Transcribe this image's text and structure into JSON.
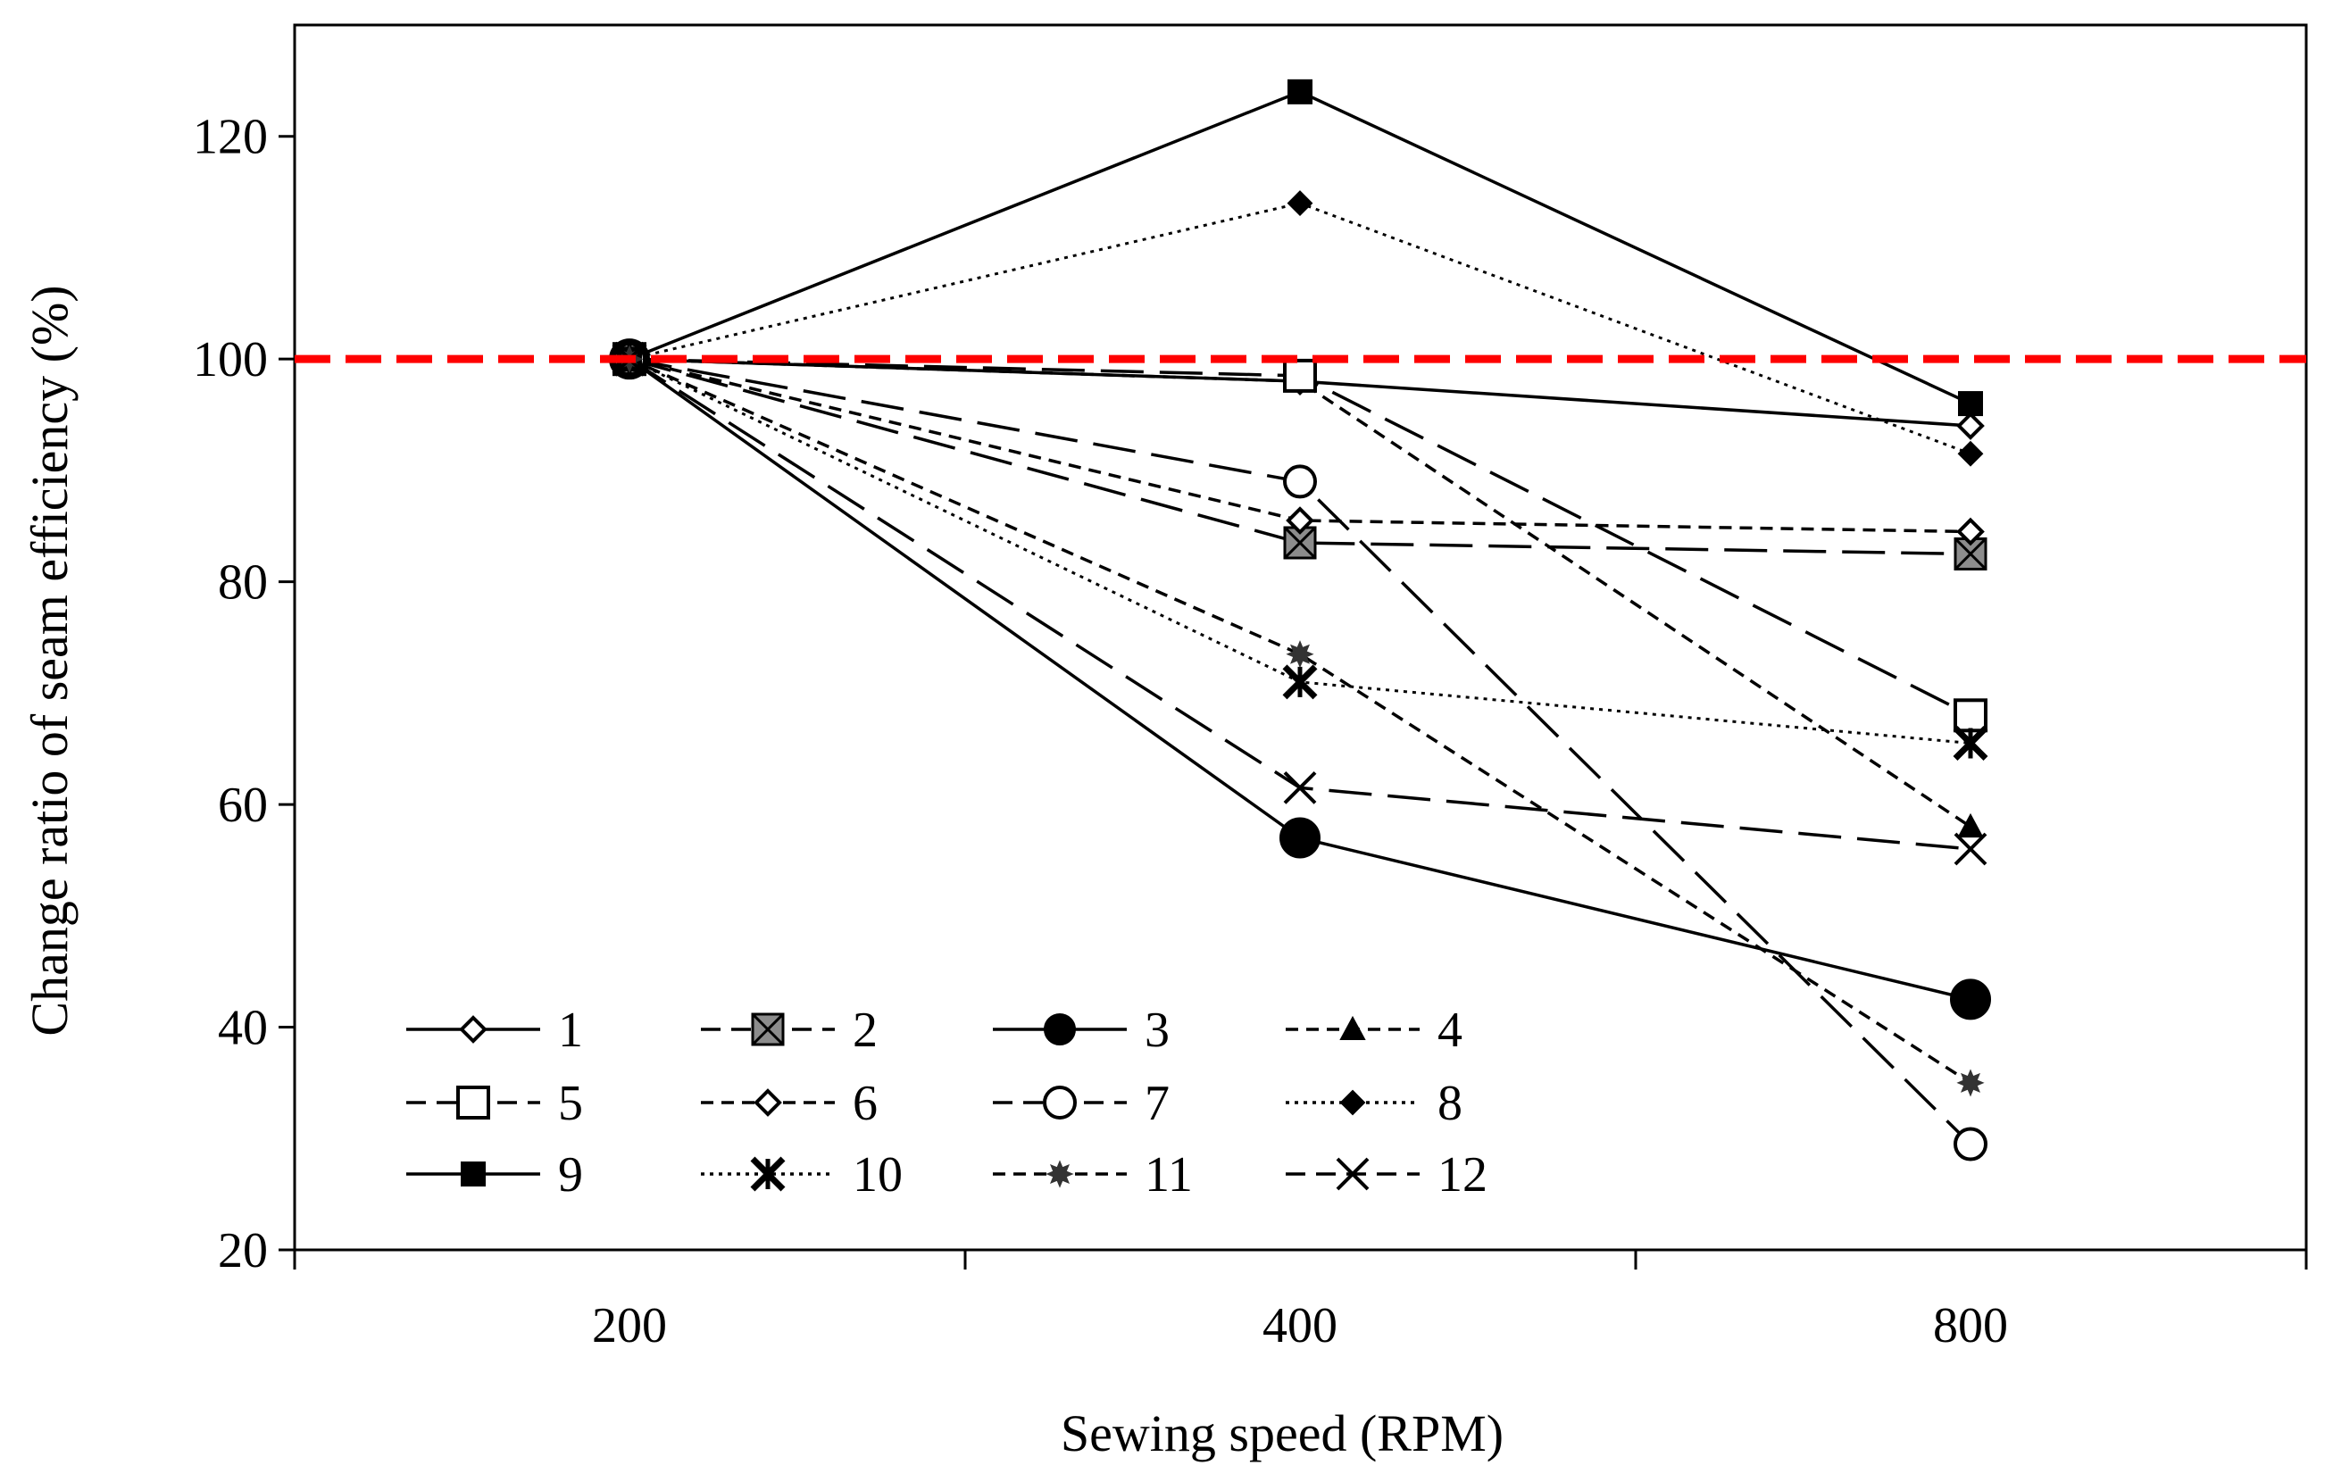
{
  "chart_data": {
    "type": "line",
    "title": "",
    "xlabel": "Sewing speed (RPM)",
    "ylabel": "Change ratio of seam efficiency (%)",
    "categories": [
      "200",
      "400",
      "800"
    ],
    "ylim": [
      20,
      130
    ],
    "yticks": [
      20,
      40,
      60,
      80,
      100,
      120
    ],
    "reference_line": {
      "value": 100,
      "color": "#ff0000",
      "style": "dashed"
    },
    "legend_position": "bottom-left inside plot",
    "series": [
      {
        "name": "1",
        "values": [
          100,
          98,
          94
        ],
        "marker": "diamond-open",
        "line": "solid",
        "marker_size": "small"
      },
      {
        "name": "2",
        "values": [
          100,
          83.5,
          82.5
        ],
        "marker": "square-x-gray",
        "line": "dashed",
        "marker_size": "medium"
      },
      {
        "name": "3",
        "values": [
          100,
          57,
          42.5
        ],
        "marker": "circle-filled",
        "line": "solid",
        "marker_size": "large"
      },
      {
        "name": "4",
        "values": [
          100,
          98,
          58
        ],
        "marker": "triangle-filled",
        "line": "shortdash",
        "marker_size": "small"
      },
      {
        "name": "5",
        "values": [
          100,
          98.5,
          68
        ],
        "marker": "square-open",
        "line": "dashed",
        "marker_size": "medium"
      },
      {
        "name": "6",
        "values": [
          100,
          85.5,
          84.5
        ],
        "marker": "diamond-open",
        "line": "shortdash",
        "marker_size": "small"
      },
      {
        "name": "7",
        "values": [
          100,
          89,
          29.5
        ],
        "marker": "circle-open",
        "line": "dashed",
        "marker_size": "medium"
      },
      {
        "name": "8",
        "values": [
          100,
          114,
          91.5
        ],
        "marker": "diamond-filled",
        "line": "dotted",
        "marker_size": "small"
      },
      {
        "name": "9",
        "values": [
          100,
          124,
          96
        ],
        "marker": "square-filled",
        "line": "solid",
        "marker_size": "small"
      },
      {
        "name": "10",
        "values": [
          100,
          71,
          65.5
        ],
        "marker": "asterisk",
        "line": "dotted",
        "marker_size": "medium"
      },
      {
        "name": "11",
        "values": [
          100,
          73.5,
          35
        ],
        "marker": "star-filled",
        "line": "shortdash",
        "marker_size": "small"
      },
      {
        "name": "12",
        "values": [
          100,
          61.5,
          56
        ],
        "marker": "x",
        "line": "dashed",
        "marker_size": "medium"
      }
    ]
  }
}
